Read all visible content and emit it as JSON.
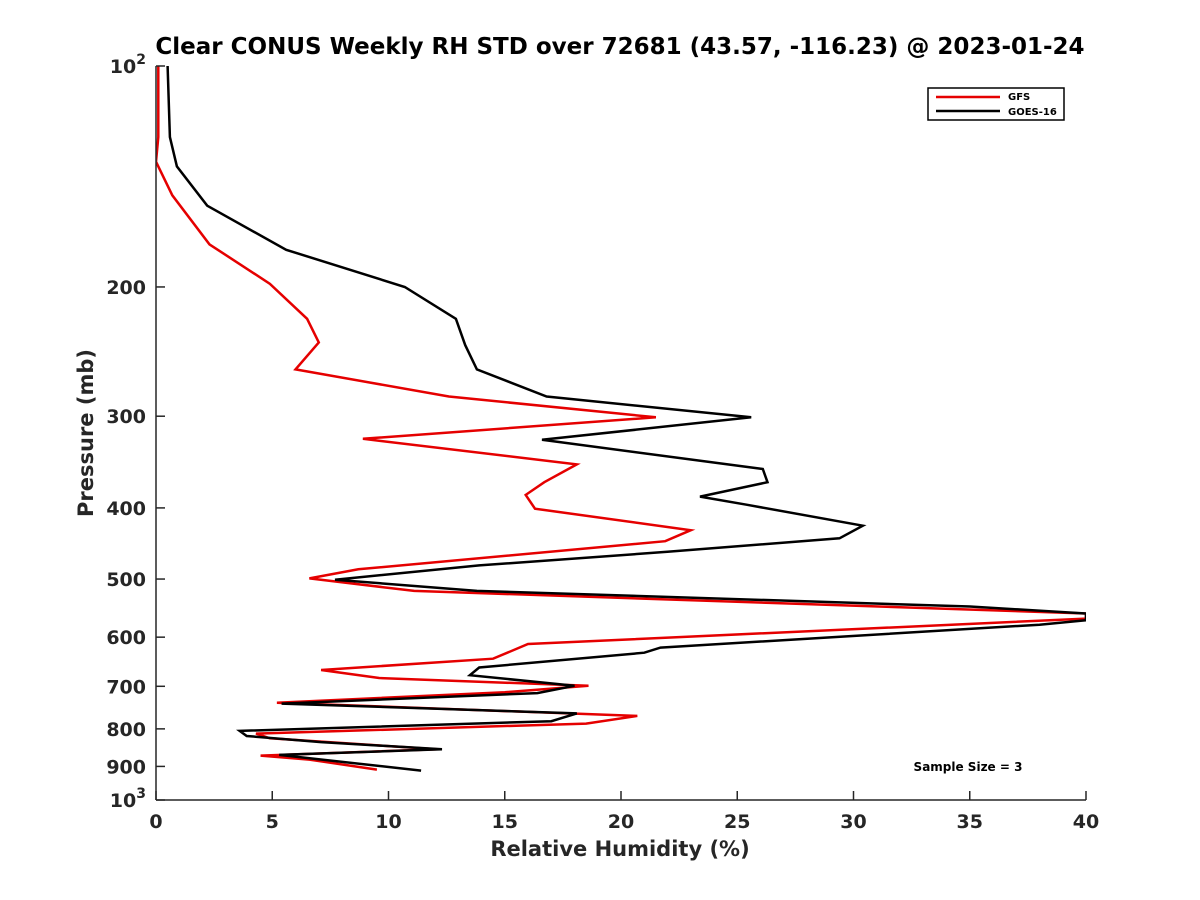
{
  "chart_data": {
    "type": "line",
    "title": "Clear CONUS Weekly RH STD over 72681 (43.57, -116.23) @ 2023-01-24",
    "xlabel": "Relative Humidity (%)",
    "ylabel": "Pressure (mb)",
    "xlim": [
      0,
      40
    ],
    "ylim": [
      100,
      1000
    ],
    "yscale": "log",
    "y_reversed": true,
    "grid": false,
    "legend_position": "top-right",
    "x_ticks": [
      "0",
      "5",
      "10",
      "15",
      "20",
      "25",
      "30",
      "35",
      "40"
    ],
    "x_tick_values": [
      0,
      5,
      10,
      15,
      20,
      25,
      30,
      35,
      40
    ],
    "y_ticks": [
      {
        "value": 100,
        "base": "10",
        "exp": "2"
      },
      {
        "value": 200,
        "label": "200"
      },
      {
        "value": 300,
        "label": "300"
      },
      {
        "value": 400,
        "label": "400"
      },
      {
        "value": 500,
        "label": "500"
      },
      {
        "value": 600,
        "label": "600"
      },
      {
        "value": 700,
        "label": "700"
      },
      {
        "value": 800,
        "label": "800"
      },
      {
        "value": 900,
        "label": "900"
      },
      {
        "value": 1000,
        "base": "10",
        "exp": "3"
      }
    ],
    "series": [
      {
        "name": "GFS",
        "color": "#e50000",
        "points": [
          [
            0.1,
            100
          ],
          [
            0.1,
            125
          ],
          [
            0.0,
            135
          ],
          [
            0.7,
            150
          ],
          [
            2.3,
            175
          ],
          [
            4.9,
            198
          ],
          [
            6.5,
            221
          ],
          [
            7.0,
            238
          ],
          [
            6.0,
            259
          ],
          [
            12.6,
            282
          ],
          [
            21.5,
            301
          ],
          [
            8.9,
            322
          ],
          [
            18.1,
            349
          ],
          [
            16.7,
            369
          ],
          [
            15.9,
            384
          ],
          [
            16.3,
            401
          ],
          [
            23.0,
            429
          ],
          [
            21.9,
            444
          ],
          [
            8.7,
            485
          ],
          [
            6.6,
            499
          ],
          [
            11.1,
            519
          ],
          [
            40.0,
            557
          ],
          [
            40.0,
            566
          ],
          [
            16.0,
            613
          ],
          [
            14.5,
            642
          ],
          [
            7.1,
            665
          ],
          [
            9.6,
            682
          ],
          [
            18.6,
            699
          ],
          [
            15.0,
            713
          ],
          [
            5.2,
            737
          ],
          [
            20.7,
            768
          ],
          [
            18.5,
            787
          ],
          [
            4.3,
            812
          ],
          [
            4.9,
            824
          ],
          [
            12.1,
            853
          ],
          [
            4.5,
            870
          ],
          [
            6.6,
            881
          ],
          [
            9.5,
            909
          ]
        ]
      },
      {
        "name": "GOES-16",
        "color": "#000000",
        "points": [
          [
            0.5,
            100
          ],
          [
            0.6,
            125
          ],
          [
            0.9,
            137
          ],
          [
            2.2,
            155
          ],
          [
            5.6,
            178
          ],
          [
            10.7,
            200
          ],
          [
            12.9,
            221
          ],
          [
            13.3,
            240
          ],
          [
            13.8,
            259
          ],
          [
            16.8,
            282
          ],
          [
            25.6,
            301
          ],
          [
            16.6,
            323
          ],
          [
            26.1,
            354
          ],
          [
            26.3,
            369
          ],
          [
            23.4,
            386
          ],
          [
            25.4,
            396
          ],
          [
            30.4,
            423
          ],
          [
            29.4,
            440
          ],
          [
            22.0,
            459
          ],
          [
            13.9,
            479
          ],
          [
            7.7,
            501
          ],
          [
            13.8,
            519
          ],
          [
            35.0,
            545
          ],
          [
            40.0,
            557
          ],
          [
            40.0,
            569
          ],
          [
            38.0,
            577
          ],
          [
            21.7,
            620
          ],
          [
            21.0,
            630
          ],
          [
            13.9,
            660
          ],
          [
            13.5,
            676
          ],
          [
            18.0,
            699
          ],
          [
            16.4,
            715
          ],
          [
            5.4,
            739
          ],
          [
            18.1,
            762
          ],
          [
            17.0,
            781
          ],
          [
            3.6,
            805
          ],
          [
            3.9,
            818
          ],
          [
            7.1,
            834
          ],
          [
            12.3,
            853
          ],
          [
            5.3,
            868
          ],
          [
            11.4,
            912
          ]
        ]
      }
    ],
    "annotation": "Sample Size = 3"
  }
}
